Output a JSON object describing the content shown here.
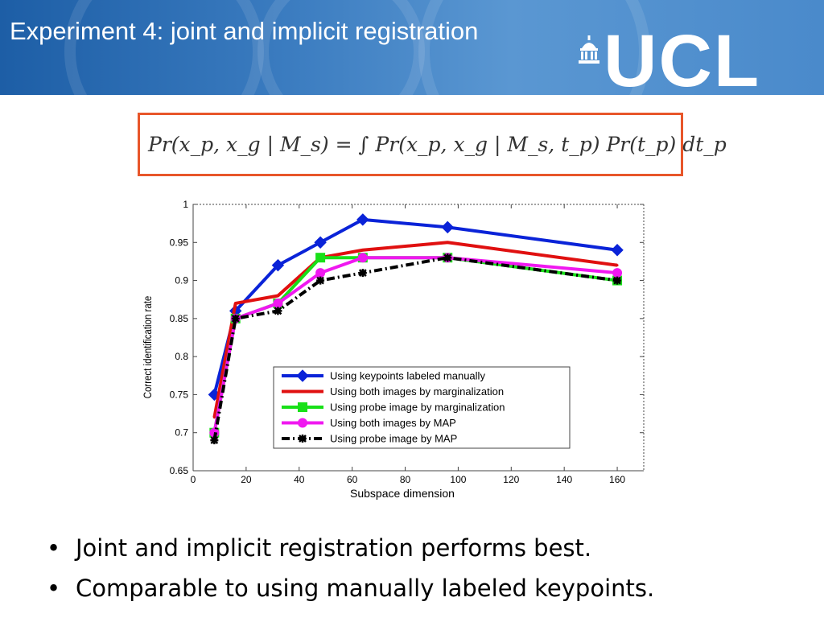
{
  "slide": {
    "title": "Experiment 4:  joint and implicit registration",
    "logo_text": "UCL",
    "formula": "Pr(x_p, x_g | M_s) = ∫ Pr(x_p, x_g | M_s, t_p) Pr(t_p) dt_p",
    "bullets": [
      "Joint and implicit registration performs best.",
      "Comparable to using manually labeled keypoints."
    ],
    "bullet_symbol": "•"
  },
  "colors": {
    "header_blue": "#2f6fb5",
    "formula_border": "#e8562a"
  },
  "chart_data": {
    "type": "line",
    "title": "",
    "xlabel": "Subspace dimension",
    "ylabel": "Correct identification rate",
    "xlim": [
      0,
      170
    ],
    "ylim": [
      0.65,
      1
    ],
    "xticks": [
      0,
      20,
      40,
      60,
      80,
      100,
      120,
      140,
      160
    ],
    "yticks": [
      0.65,
      0.7,
      0.75,
      0.8,
      0.85,
      0.9,
      0.95,
      1
    ],
    "xtick_labels": [
      "0",
      "20",
      "40",
      "60",
      "80",
      "100",
      "120",
      "140",
      "160"
    ],
    "ytick_labels": [
      "0.65",
      "0.7",
      "0.75",
      "0.8",
      "0.85",
      "0.9",
      "0.95",
      "1"
    ],
    "grid": false,
    "legend_position": "lower-center",
    "series": [
      {
        "name": "Using keypoints labeled manually",
        "color": "#0a23d8",
        "marker": "diamond",
        "dash": "solid",
        "x": [
          8,
          16,
          32,
          48,
          64,
          96,
          160
        ],
        "y": [
          0.75,
          0.86,
          0.92,
          0.95,
          0.98,
          0.97,
          0.94
        ]
      },
      {
        "name": "Using both images by marginalization",
        "color": "#e01010",
        "marker": "point",
        "dash": "solid",
        "x": [
          8,
          16,
          32,
          48,
          64,
          96,
          160
        ],
        "y": [
          0.72,
          0.87,
          0.88,
          0.93,
          0.94,
          0.95,
          0.92
        ]
      },
      {
        "name": "Using probe image by marginalization",
        "color": "#18e018",
        "marker": "square",
        "dash": "solid",
        "x": [
          8,
          16,
          32,
          48,
          64,
          96,
          160
        ],
        "y": [
          0.7,
          0.85,
          0.87,
          0.93,
          0.93,
          0.93,
          0.9
        ]
      },
      {
        "name": "Using both images by MAP",
        "color": "#f018f0",
        "marker": "circle",
        "dash": "solid",
        "x": [
          8,
          16,
          32,
          48,
          64,
          96,
          160
        ],
        "y": [
          0.7,
          0.85,
          0.87,
          0.91,
          0.93,
          0.93,
          0.91
        ]
      },
      {
        "name": "Using probe image by MAP",
        "color": "#000000",
        "marker": "star",
        "dash": "dashdot",
        "x": [
          8,
          16,
          32,
          48,
          64,
          96,
          160
        ],
        "y": [
          0.69,
          0.85,
          0.86,
          0.9,
          0.91,
          0.93,
          0.9
        ]
      }
    ]
  }
}
